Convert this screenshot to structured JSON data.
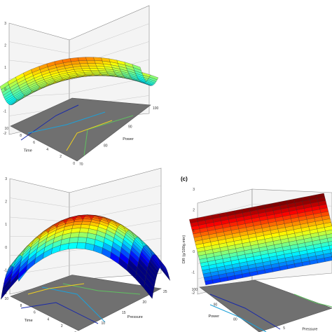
{
  "chart_data": [
    {
      "type": "surface",
      "x_label": "Power",
      "y_label": "Time",
      "z_label": "",
      "x_ticks": [
        "70",
        "80",
        "90",
        "100"
      ],
      "y_ticks": [
        "0",
        "2",
        "4",
        "6",
        "8",
        "10"
      ],
      "z_ticks": [
        "-2",
        "-1",
        "0",
        "1",
        "2",
        "3"
      ],
      "z_range": [
        -2,
        3
      ],
      "grid": true,
      "base_contour_colors": [
        "#1a2aa8",
        "#1ea0d8",
        "#60c060",
        "#f0d020"
      ]
    },
    {
      "type": "surface",
      "x_label": "Pressure",
      "y_label": "Time",
      "z_label": "",
      "x_ticks": [
        "5",
        "10",
        "15",
        "20",
        "25"
      ],
      "y_ticks": [
        "0",
        "2",
        "4",
        "6",
        "8",
        "10"
      ],
      "z_ticks": [
        "-2",
        "-1",
        "0",
        "1",
        "2",
        "3"
      ],
      "z_range": [
        -2,
        3
      ],
      "grid": true
    },
    {
      "type": "surface",
      "panel_label": "(c)",
      "x_label": "Pressure",
      "y_label": "Power",
      "z_label": "DR (g/100g.min)",
      "x_ticks": [
        "5"
      ],
      "y_ticks": [
        "70",
        "80",
        "90",
        "100"
      ],
      "z_ticks": [
        "-2",
        "-1",
        "0",
        "1",
        "2",
        "3"
      ],
      "z_range": [
        -2,
        3
      ],
      "grid": true
    }
  ]
}
